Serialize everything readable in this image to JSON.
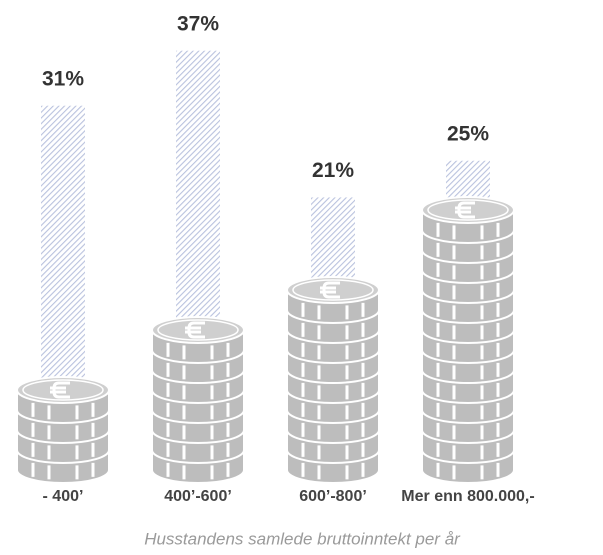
{
  "chart_data": {
    "type": "bar",
    "caption": "Husstandens samlede bruttoinntekt per år",
    "categories": [
      "- 400’",
      "400’-600’",
      "600’-800’",
      "Mer enn 800.000,-"
    ],
    "values": [
      31,
      37,
      21,
      25
    ],
    "value_labels": [
      "31%",
      "37%",
      "21%",
      "25%"
    ],
    "color": "#b9c2de"
  }
}
